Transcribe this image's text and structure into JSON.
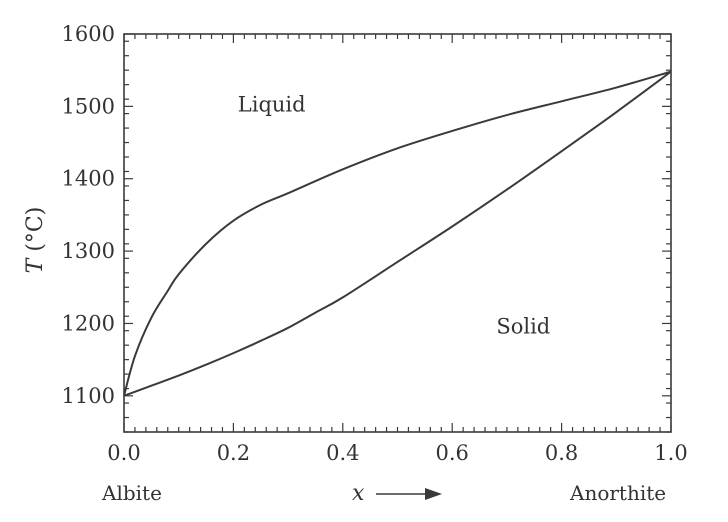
{
  "chart_data": {
    "type": "line",
    "ylabel": {
      "var": "T",
      "unit": " (°C)"
    },
    "xlabel": "x",
    "x_axis_left_label": "Albite",
    "x_axis_right_label": "Anorthite",
    "xlim": [
      0,
      1
    ],
    "ylim": [
      1050,
      1600
    ],
    "x_ticks": [
      0.0,
      0.2,
      0.4,
      0.6,
      0.8,
      1.0
    ],
    "x_tick_labels": [
      "0.0",
      "0.2",
      "0.4",
      "0.6",
      "0.8",
      "1.0"
    ],
    "y_ticks": [
      1100,
      1200,
      1300,
      1400,
      1500,
      1600
    ],
    "y_tick_labels": [
      "1100",
      "1200",
      "1300",
      "1400",
      "1500",
      "1600"
    ],
    "grid": false,
    "region_labels": [
      {
        "text": "Liquid",
        "x": 0.27,
        "y": 1493
      },
      {
        "text": "Solid",
        "x": 0.73,
        "y": 1186
      }
    ],
    "series": [
      {
        "x": [
          0.0,
          0.02,
          0.05,
          0.08,
          0.1,
          0.15,
          0.2,
          0.25,
          0.3,
          0.4,
          0.5,
          0.6,
          0.7,
          0.8,
          0.9,
          1.0
        ],
        "y": [
          1100,
          1155,
          1208,
          1245,
          1268,
          1310,
          1342,
          1364,
          1380,
          1413,
          1442,
          1466,
          1488,
          1507,
          1526,
          1548
        ]
      },
      {
        "x": [
          0.0,
          0.05,
          0.1,
          0.15,
          0.2,
          0.25,
          0.3,
          0.35,
          0.4,
          0.5,
          0.6,
          0.7,
          0.8,
          0.9,
          1.0
        ],
        "y": [
          1100,
          1114,
          1128,
          1143,
          1159,
          1176,
          1194,
          1215,
          1236,
          1285,
          1334,
          1385,
          1438,
          1492,
          1548
        ]
      }
    ]
  }
}
